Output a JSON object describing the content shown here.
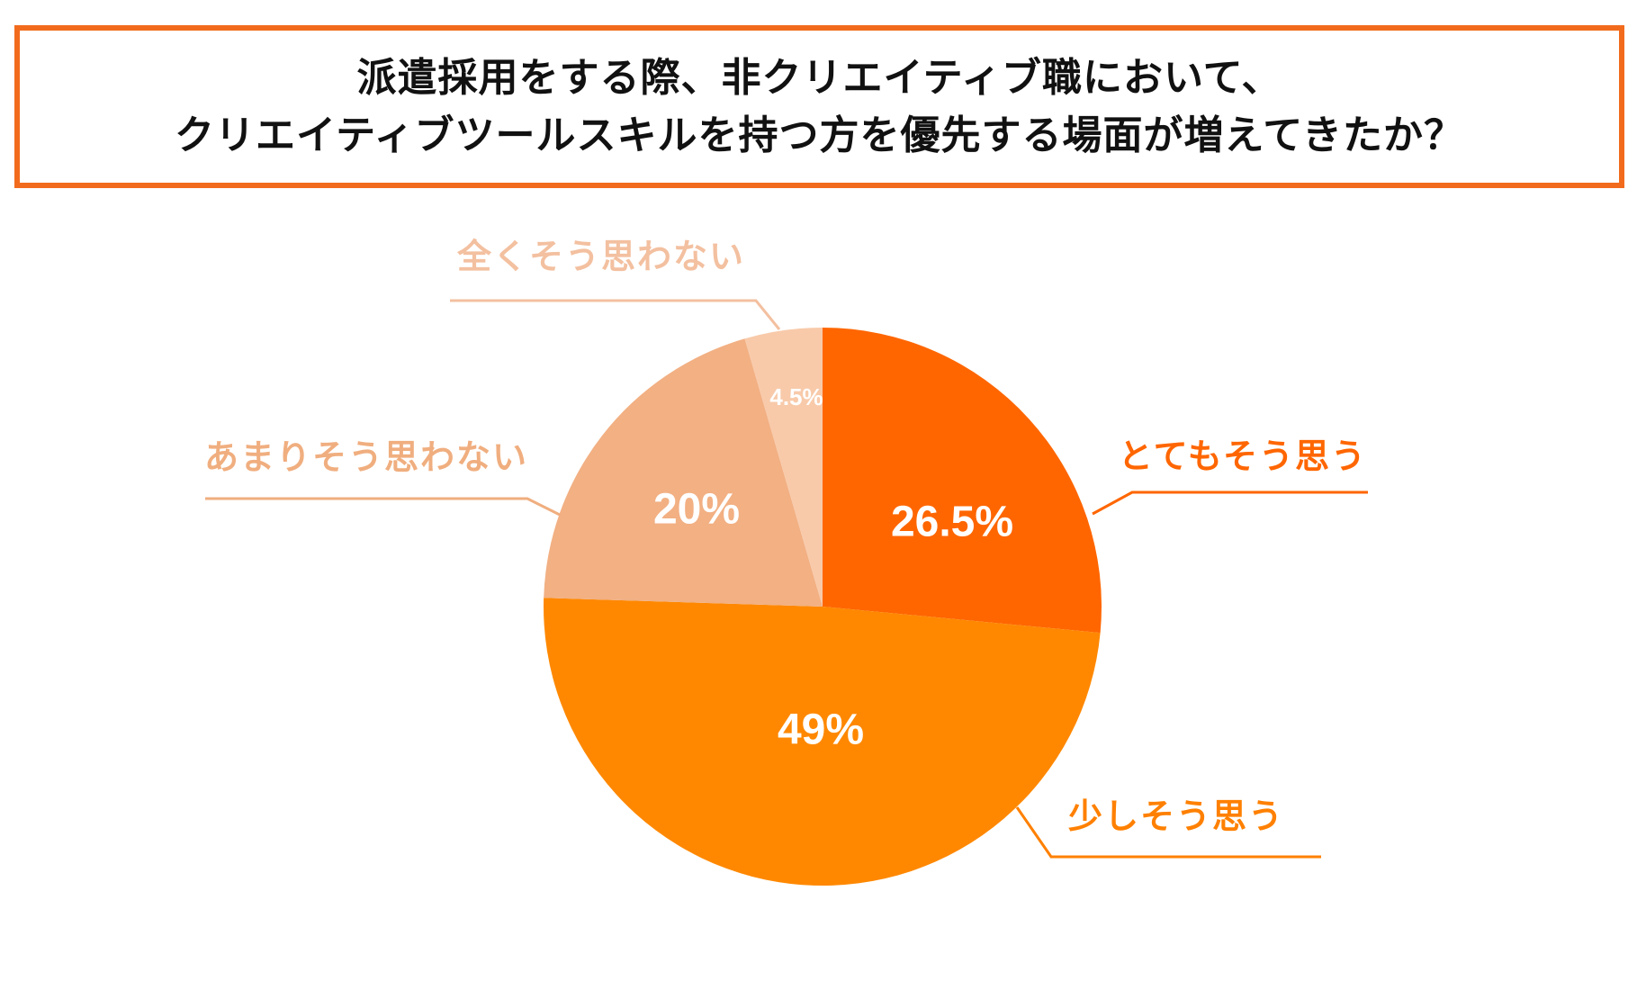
{
  "title": {
    "line1": "派遣採用をする際、非クリエイティブ職において、",
    "line2": "クリエイティブツールスキルを持つ方を優先する場面が増えてきたか？"
  },
  "colors": {
    "frame": "#F26B1D",
    "title_text": "#111111"
  },
  "chart_data": {
    "type": "pie",
    "start_angle_deg": 0,
    "direction": "clockwise",
    "slices": [
      {
        "label": "とてもそう思う",
        "value": 26.5,
        "value_label": "26.5%",
        "color": "#FF6600",
        "label_color": "#FF6600"
      },
      {
        "label": "少しそう思う",
        "value": 49,
        "value_label": "49%",
        "color": "#FF8800",
        "label_color": "#FF8000"
      },
      {
        "label": "あまりそう思わない",
        "value": 20,
        "value_label": "20%",
        "color": "#F2B083",
        "label_color": "#F0AE7F"
      },
      {
        "label": "全くそう思わない",
        "value": 4.5,
        "value_label": "4.5%",
        "color": "#F8CAAA",
        "label_color": "#F3C0A0"
      }
    ]
  }
}
